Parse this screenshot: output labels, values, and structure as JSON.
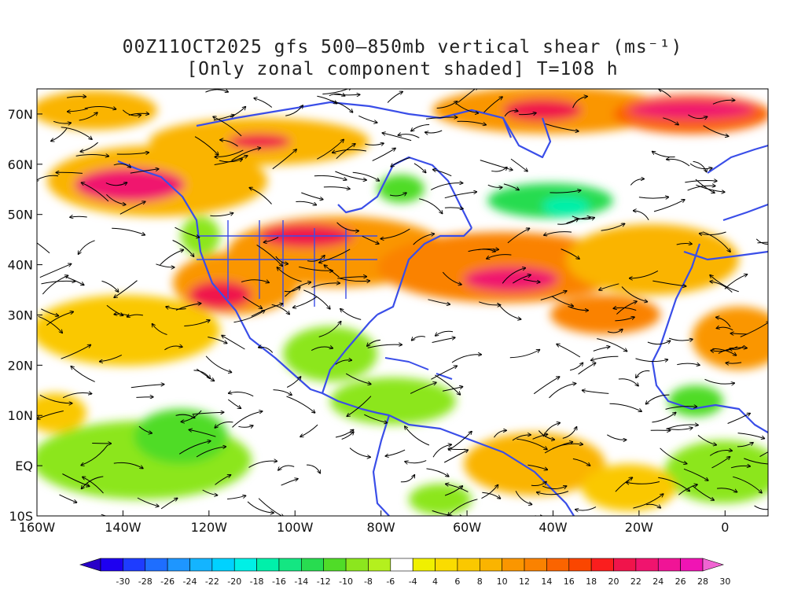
{
  "title": {
    "line1": "00Z11OCT2025 gfs 500–850mb vertical shear (ms⁻¹)",
    "line2": "[Only zonal component shaded] T=108 h"
  },
  "axes": {
    "x_labels": [
      {
        "lon": -160,
        "label": "160W"
      },
      {
        "lon": -140,
        "label": "140W"
      },
      {
        "lon": -120,
        "label": "120W"
      },
      {
        "lon": -100,
        "label": "100W"
      },
      {
        "lon": -80,
        "label": "80W"
      },
      {
        "lon": -60,
        "label": "60W"
      },
      {
        "lon": -40,
        "label": "40W"
      },
      {
        "lon": -20,
        "label": "20W"
      },
      {
        "lon": 0,
        "label": "0"
      }
    ],
    "y_labels": [
      {
        "lat": 70,
        "label": "70N"
      },
      {
        "lat": 60,
        "label": "60N"
      },
      {
        "lat": 50,
        "label": "50N"
      },
      {
        "lat": 40,
        "label": "40N"
      },
      {
        "lat": 30,
        "label": "30N"
      },
      {
        "lat": 20,
        "label": "20N"
      },
      {
        "lat": 10,
        "label": "10N"
      },
      {
        "lat": 0,
        "label": "EQ"
      },
      {
        "lat": -10,
        "label": "10S"
      }
    ],
    "lon_range": [
      -160,
      10
    ],
    "lat_range": [
      -10,
      75
    ]
  },
  "colorbar": {
    "labels": [
      "-30",
      "-28",
      "-26",
      "-24",
      "-22",
      "-20",
      "-18",
      "-16",
      "-14",
      "-12",
      "-10",
      "-8",
      "-6",
      "-4",
      "4",
      "6",
      "8",
      "10",
      "12",
      "14",
      "16",
      "18",
      "20",
      "22",
      "24",
      "26",
      "28",
      "30"
    ],
    "colors": [
      "#1e00f0",
      "#1e3cff",
      "#1e6eff",
      "#1e96ff",
      "#14b4ff",
      "#00d2ff",
      "#00f0e6",
      "#00f0aa",
      "#14e682",
      "#28dc50",
      "#50dc28",
      "#8ce61e",
      "#b4f01e",
      "#ffffff",
      "#f0f000",
      "#fadc00",
      "#fac800",
      "#fab400",
      "#fa9600",
      "#fa8200",
      "#fa6400",
      "#fa4600",
      "#fa1e1e",
      "#f0144b",
      "#f0146e",
      "#f01496",
      "#f014b4"
    ]
  },
  "map": {
    "land_outline_color": "#3a4ee8",
    "streamline_color": "#000000"
  }
}
